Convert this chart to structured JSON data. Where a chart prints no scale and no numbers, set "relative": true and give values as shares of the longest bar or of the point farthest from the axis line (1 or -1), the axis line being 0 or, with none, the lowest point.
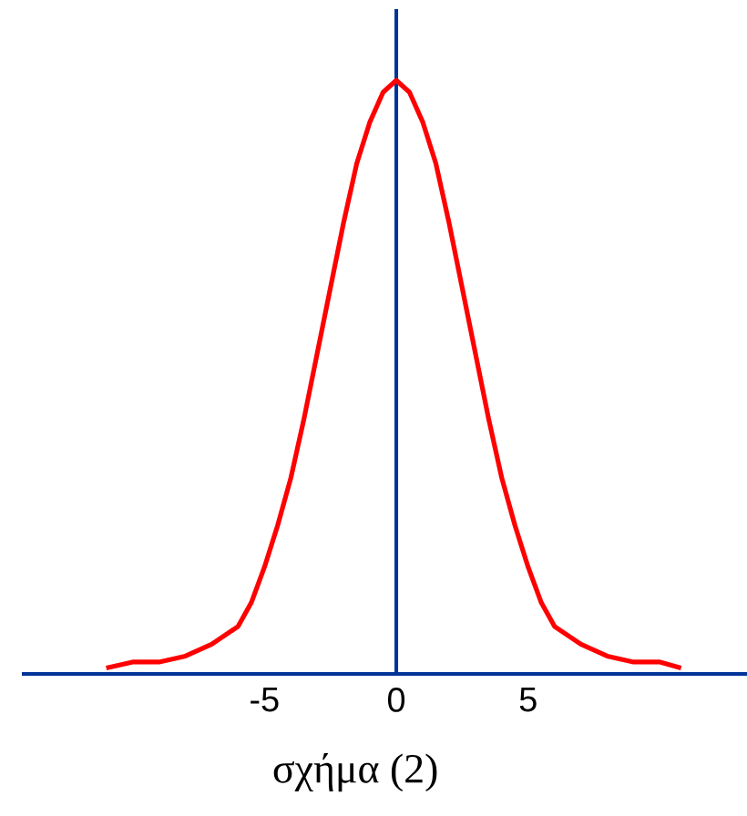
{
  "chart_data": {
    "type": "line",
    "relative": true,
    "xlabel": "σχήμα (2)",
    "xlim": [
      -14.2,
      13.3
    ],
    "xticks": [
      -5,
      0,
      5
    ],
    "tick_labels": "x",
    "marker": "none",
    "ref_lines": [
      {
        "axis": "x",
        "value": 0,
        "color": "#003399"
      }
    ],
    "series": [
      {
        "color": "#ff0000",
        "x": [
          -11,
          -10,
          -9,
          -8,
          -7,
          -6,
          -5.5,
          -5,
          -4.5,
          -4,
          -3.5,
          -3,
          -2.5,
          -2,
          -1.5,
          -1,
          -0.5,
          0,
          0.5,
          1,
          1.5,
          2,
          2.5,
          3,
          3.5,
          4,
          4.5,
          5,
          5.5,
          6,
          7,
          8,
          9,
          10,
          10.8
        ],
        "values": [
          0.01,
          0.02,
          0.02,
          0.03,
          0.05,
          0.08,
          0.12,
          0.18,
          0.25,
          0.33,
          0.43,
          0.54,
          0.65,
          0.76,
          0.86,
          0.93,
          0.98,
          1,
          0.98,
          0.93,
          0.86,
          0.76,
          0.65,
          0.54,
          0.43,
          0.33,
          0.25,
          0.18,
          0.12,
          0.08,
          0.05,
          0.03,
          0.02,
          0.02,
          0.01
        ]
      }
    ]
  }
}
